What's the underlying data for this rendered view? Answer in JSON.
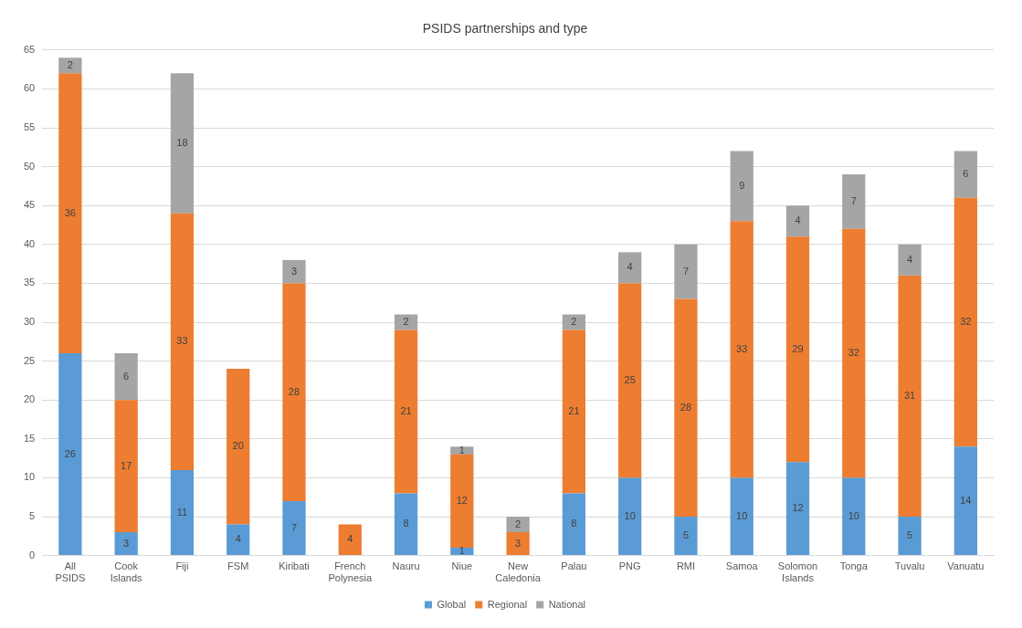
{
  "chart_data": {
    "type": "bar",
    "title": "PSIDS partnerships and type",
    "stacked": true,
    "categories": [
      "All PSIDS",
      "Cook Islands",
      "Fiji",
      "FSM",
      "Kiribati",
      "French Polynesia",
      "Nauru",
      "Niue",
      "New Caledonia",
      "Palau",
      "PNG",
      "RMI",
      "Samoa",
      "Solomon Islands",
      "Tonga",
      "Tuvalu",
      "Vanuatu"
    ],
    "series": [
      {
        "name": "Global",
        "color": "#5b9bd5",
        "values": [
          26,
          3,
          11,
          4,
          7,
          null,
          8,
          1,
          null,
          8,
          10,
          5,
          10,
          12,
          10,
          5,
          14
        ]
      },
      {
        "name": "Regional",
        "color": "#ed7d31",
        "values": [
          36,
          17,
          33,
          20,
          28,
          4,
          21,
          12,
          3,
          21,
          25,
          28,
          33,
          29,
          32,
          31,
          32
        ]
      },
      {
        "name": "National",
        "color": "#a5a5a5",
        "values": [
          2,
          6,
          18,
          null,
          3,
          null,
          2,
          1,
          2,
          2,
          4,
          7,
          9,
          4,
          7,
          4,
          6
        ]
      }
    ],
    "ylim": [
      0,
      65
    ],
    "yticks": [
      0,
      5,
      10,
      15,
      20,
      25,
      30,
      35,
      40,
      45,
      50,
      55,
      60,
      65
    ],
    "grid": "y",
    "legend": "bottom",
    "data_labels": true
  }
}
